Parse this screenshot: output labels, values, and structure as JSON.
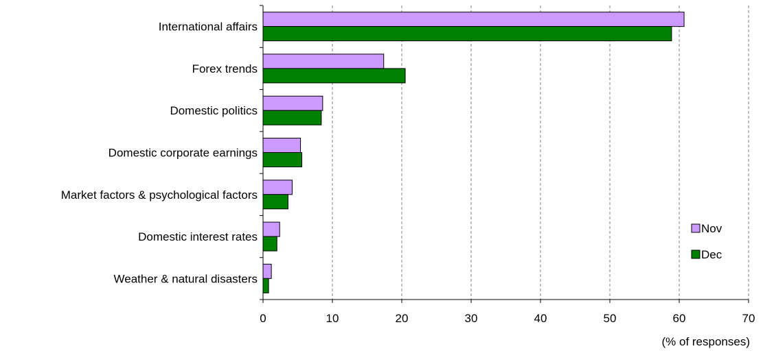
{
  "chart_data": {
    "type": "bar",
    "orientation": "horizontal",
    "categories": [
      "International affairs",
      "Forex trends",
      "Domestic politics",
      "Domestic corporate earnings",
      "Market factors & psychological factors",
      "Domestic interest rates",
      "Weather & natural disasters"
    ],
    "series": [
      {
        "name": "Nov",
        "color": "#cc99ff",
        "values": [
          60.7,
          17.4,
          8.6,
          5.4,
          4.2,
          2.4,
          1.2
        ]
      },
      {
        "name": "Dec",
        "color": "#008000",
        "values": [
          58.9,
          20.5,
          8.4,
          5.6,
          3.6,
          2.0,
          0.8
        ]
      }
    ],
    "title": "",
    "xlabel": "(% of responses)",
    "ylabel": "",
    "xlim": [
      0,
      70
    ],
    "xticks": [
      0,
      10,
      20,
      30,
      40,
      50,
      60,
      70
    ],
    "grid": "vertical dashed",
    "legend_position": "lower-right"
  }
}
